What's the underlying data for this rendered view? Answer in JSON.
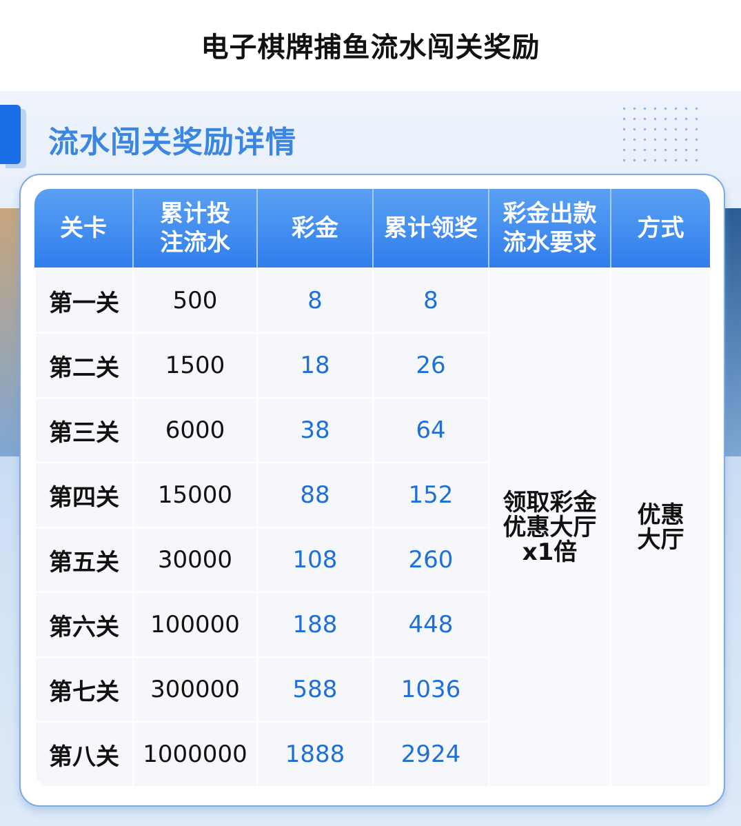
{
  "page_title": "电子棋牌捕鱼流水闯关奖励",
  "section_title": "流水闯关奖励详情",
  "colors": {
    "accent": "#1a6fe8",
    "header": "#2f7eec",
    "value_blue": "#1f6fd6"
  },
  "table": {
    "headers": [
      "关卡",
      "累计投注流水",
      "彩金",
      "累计领奖",
      "彩金出款流水要求",
      "方式"
    ],
    "header_lines": [
      [
        "关卡"
      ],
      [
        "累计投",
        "注流水"
      ],
      [
        "彩金"
      ],
      [
        "累计领奖"
      ],
      [
        "彩金出款",
        "流水要求"
      ],
      [
        "方式"
      ]
    ],
    "rows": [
      [
        "第一关",
        "500",
        "8",
        "8"
      ],
      [
        "第二关",
        "1500",
        "18",
        "26"
      ],
      [
        "第三关",
        "6000",
        "38",
        "64"
      ],
      [
        "第四关",
        "15000",
        "88",
        "152"
      ],
      [
        "第五关",
        "30000",
        "108",
        "260"
      ],
      [
        "第六关",
        "100000",
        "188",
        "448"
      ],
      [
        "第七关",
        "300000",
        "588",
        "1036"
      ],
      [
        "第八关",
        "1000000",
        "1888",
        "2924"
      ]
    ],
    "requirement_lines": [
      "领取彩金",
      "优惠大厅",
      "x1倍"
    ],
    "method_lines": [
      "优惠",
      "大厅"
    ]
  }
}
